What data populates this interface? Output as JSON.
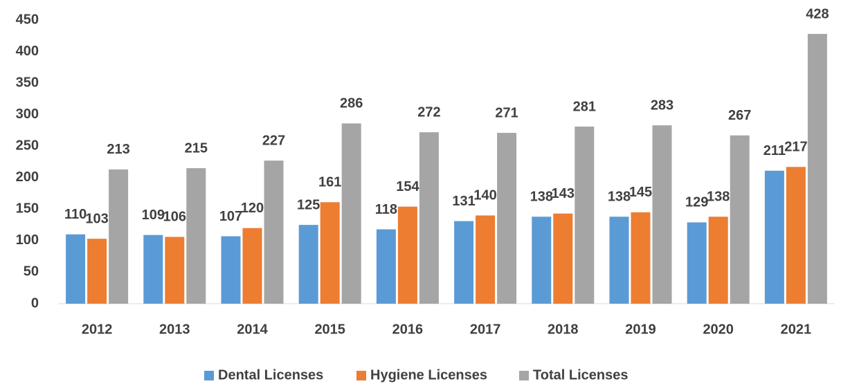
{
  "chart_data": {
    "type": "bar",
    "categories": [
      "2012",
      "2013",
      "2014",
      "2015",
      "2016",
      "2017",
      "2018",
      "2019",
      "2020",
      "2021"
    ],
    "series": [
      {
        "name": "Dental Licenses",
        "color": "#5b9bd5",
        "values": [
          110,
          109,
          107,
          125,
          118,
          131,
          138,
          138,
          129,
          211
        ]
      },
      {
        "name": "Hygiene Licenses",
        "color": "#ed7d31",
        "values": [
          103,
          106,
          120,
          161,
          154,
          140,
          143,
          145,
          138,
          217
        ]
      },
      {
        "name": "Total Licenses",
        "color": "#a5a5a5",
        "values": [
          213,
          215,
          227,
          286,
          272,
          271,
          281,
          283,
          267,
          428
        ]
      }
    ],
    "ylim": [
      0,
      450
    ],
    "yticks": [
      0,
      50,
      100,
      150,
      200,
      250,
      300,
      350,
      400,
      450
    ],
    "grid": false,
    "legend": "bottom"
  }
}
